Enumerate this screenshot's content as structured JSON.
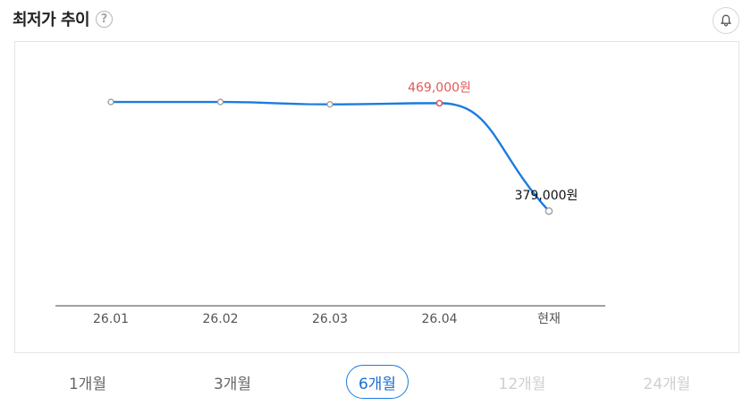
{
  "header": {
    "title": "최저가 추이",
    "help_icon": "help-icon",
    "help_glyph": "?",
    "alert_icon": "bell-icon"
  },
  "chart_data": {
    "type": "line",
    "categories": [
      "26.01",
      "26.02",
      "26.03",
      "26.04",
      "현재"
    ],
    "series": [
      {
        "values": [
          470000,
          470000,
          468000,
          469000,
          379000
        ]
      }
    ],
    "annotations": [
      {
        "category": "26.04",
        "text": "469,000원",
        "color": "#e05b5b"
      },
      {
        "category": "현재",
        "text": "379,000원",
        "color": "#111111"
      }
    ],
    "ylim": [
      300000,
      520000
    ],
    "grid": false,
    "line_color": "#1a7ce0",
    "highlight_color": "#e05b5b"
  },
  "period_tabs": [
    {
      "label": "1개월",
      "state": "enabled"
    },
    {
      "label": "3개월",
      "state": "enabled"
    },
    {
      "label": "6개월",
      "state": "active"
    },
    {
      "label": "12개월",
      "state": "disabled"
    },
    {
      "label": "24개월",
      "state": "disabled"
    }
  ]
}
